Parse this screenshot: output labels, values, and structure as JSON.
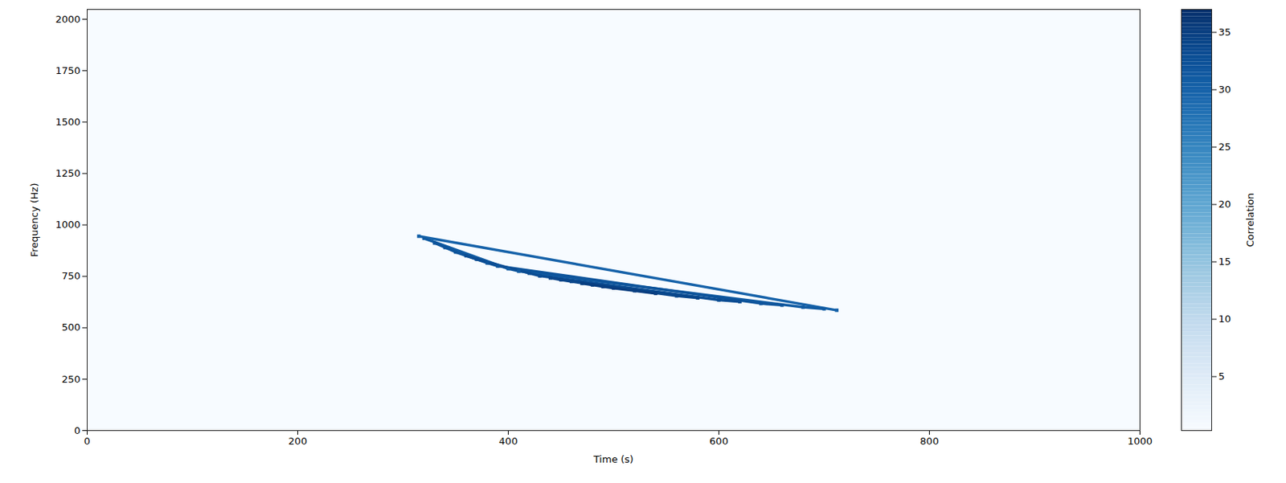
{
  "chart_data": {
    "type": "heatmap",
    "xlabel": "Time (s)",
    "ylabel": "Frequency (Hz)",
    "x": [
      315,
      320,
      330,
      340,
      350,
      360,
      370,
      380,
      390,
      400,
      410,
      420,
      430,
      440,
      450,
      460,
      470,
      480,
      490,
      500,
      520,
      540,
      560,
      580,
      600,
      620,
      640,
      660,
      680,
      700,
      712
    ],
    "y": [
      945,
      935,
      912,
      890,
      868,
      850,
      833,
      815,
      800,
      787,
      775,
      765,
      752,
      742,
      733,
      725,
      716,
      708,
      700,
      693,
      680,
      667,
      655,
      645,
      635,
      627,
      618,
      610,
      600,
      592,
      585
    ],
    "values": [
      30,
      31,
      32,
      32,
      32,
      33,
      33,
      32,
      32,
      31,
      31,
      33,
      33,
      34,
      34,
      34,
      35,
      35,
      35,
      35,
      35,
      35,
      34,
      34,
      33,
      33,
      32,
      32,
      31,
      31,
      30
    ],
    "xlim": [
      0,
      1000
    ],
    "xticks": [
      0,
      200,
      400,
      600,
      800,
      1000
    ],
    "ylim": [
      0,
      2048
    ],
    "yticks": [
      0,
      250,
      500,
      750,
      1000,
      1250,
      1500,
      1750,
      2000
    ],
    "color": "blues",
    "colorbar": {
      "label": "Correlation",
      "range": [
        0.3,
        37
      ],
      "ticks": [
        5,
        10,
        15,
        20,
        25,
        30,
        35
      ]
    }
  }
}
